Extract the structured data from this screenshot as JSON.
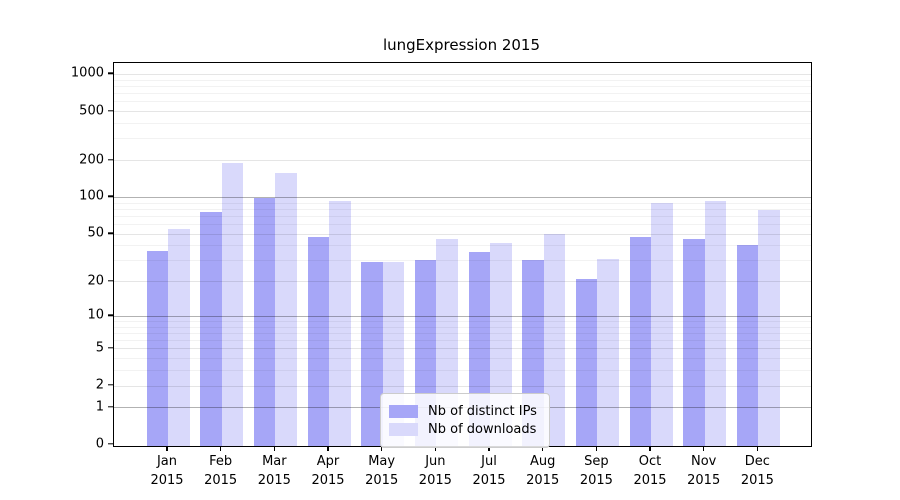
{
  "title": "lungExpression 2015",
  "chart_data": {
    "type": "bar",
    "title": "lungExpression 2015",
    "months": [
      "Jan",
      "Feb",
      "Mar",
      "Apr",
      "May",
      "Jun",
      "Jul",
      "Aug",
      "Sep",
      "Oct",
      "Nov",
      "Dec"
    ],
    "year": "2015",
    "categories": [
      "Jan 2015",
      "Feb 2015",
      "Mar 2015",
      "Apr 2015",
      "May 2015",
      "Jun 2015",
      "Jul 2015",
      "Aug 2015",
      "Sep 2015",
      "Oct 2015",
      "Nov 2015",
      "Dec 2015"
    ],
    "series": [
      {
        "name": "Nb of distinct IPs",
        "color": "#a6a6f7",
        "values": [
          36,
          75,
          99,
          47,
          29,
          30,
          35,
          30,
          21,
          47,
          45,
          40
        ]
      },
      {
        "name": "Nb of downloads",
        "color": "#d9d9fb",
        "values": [
          55,
          189,
          158,
          92,
          29,
          45,
          42,
          50,
          31,
          90,
          93,
          78
        ]
      }
    ],
    "y_scale": "log1p",
    "y_tick_values": [
      0,
      1,
      2,
      5,
      10,
      20,
      50,
      100,
      200,
      500,
      1000
    ],
    "y_major_gridlines": [
      1,
      10,
      100
    ],
    "y_minor_gridlines": [
      3,
      4,
      6,
      7,
      8,
      9,
      30,
      40,
      60,
      70,
      80,
      90,
      300,
      400,
      600,
      700,
      800,
      900
    ],
    "ylim": [
      0,
      1230
    ],
    "grid": true,
    "legend_position": "lower center"
  }
}
